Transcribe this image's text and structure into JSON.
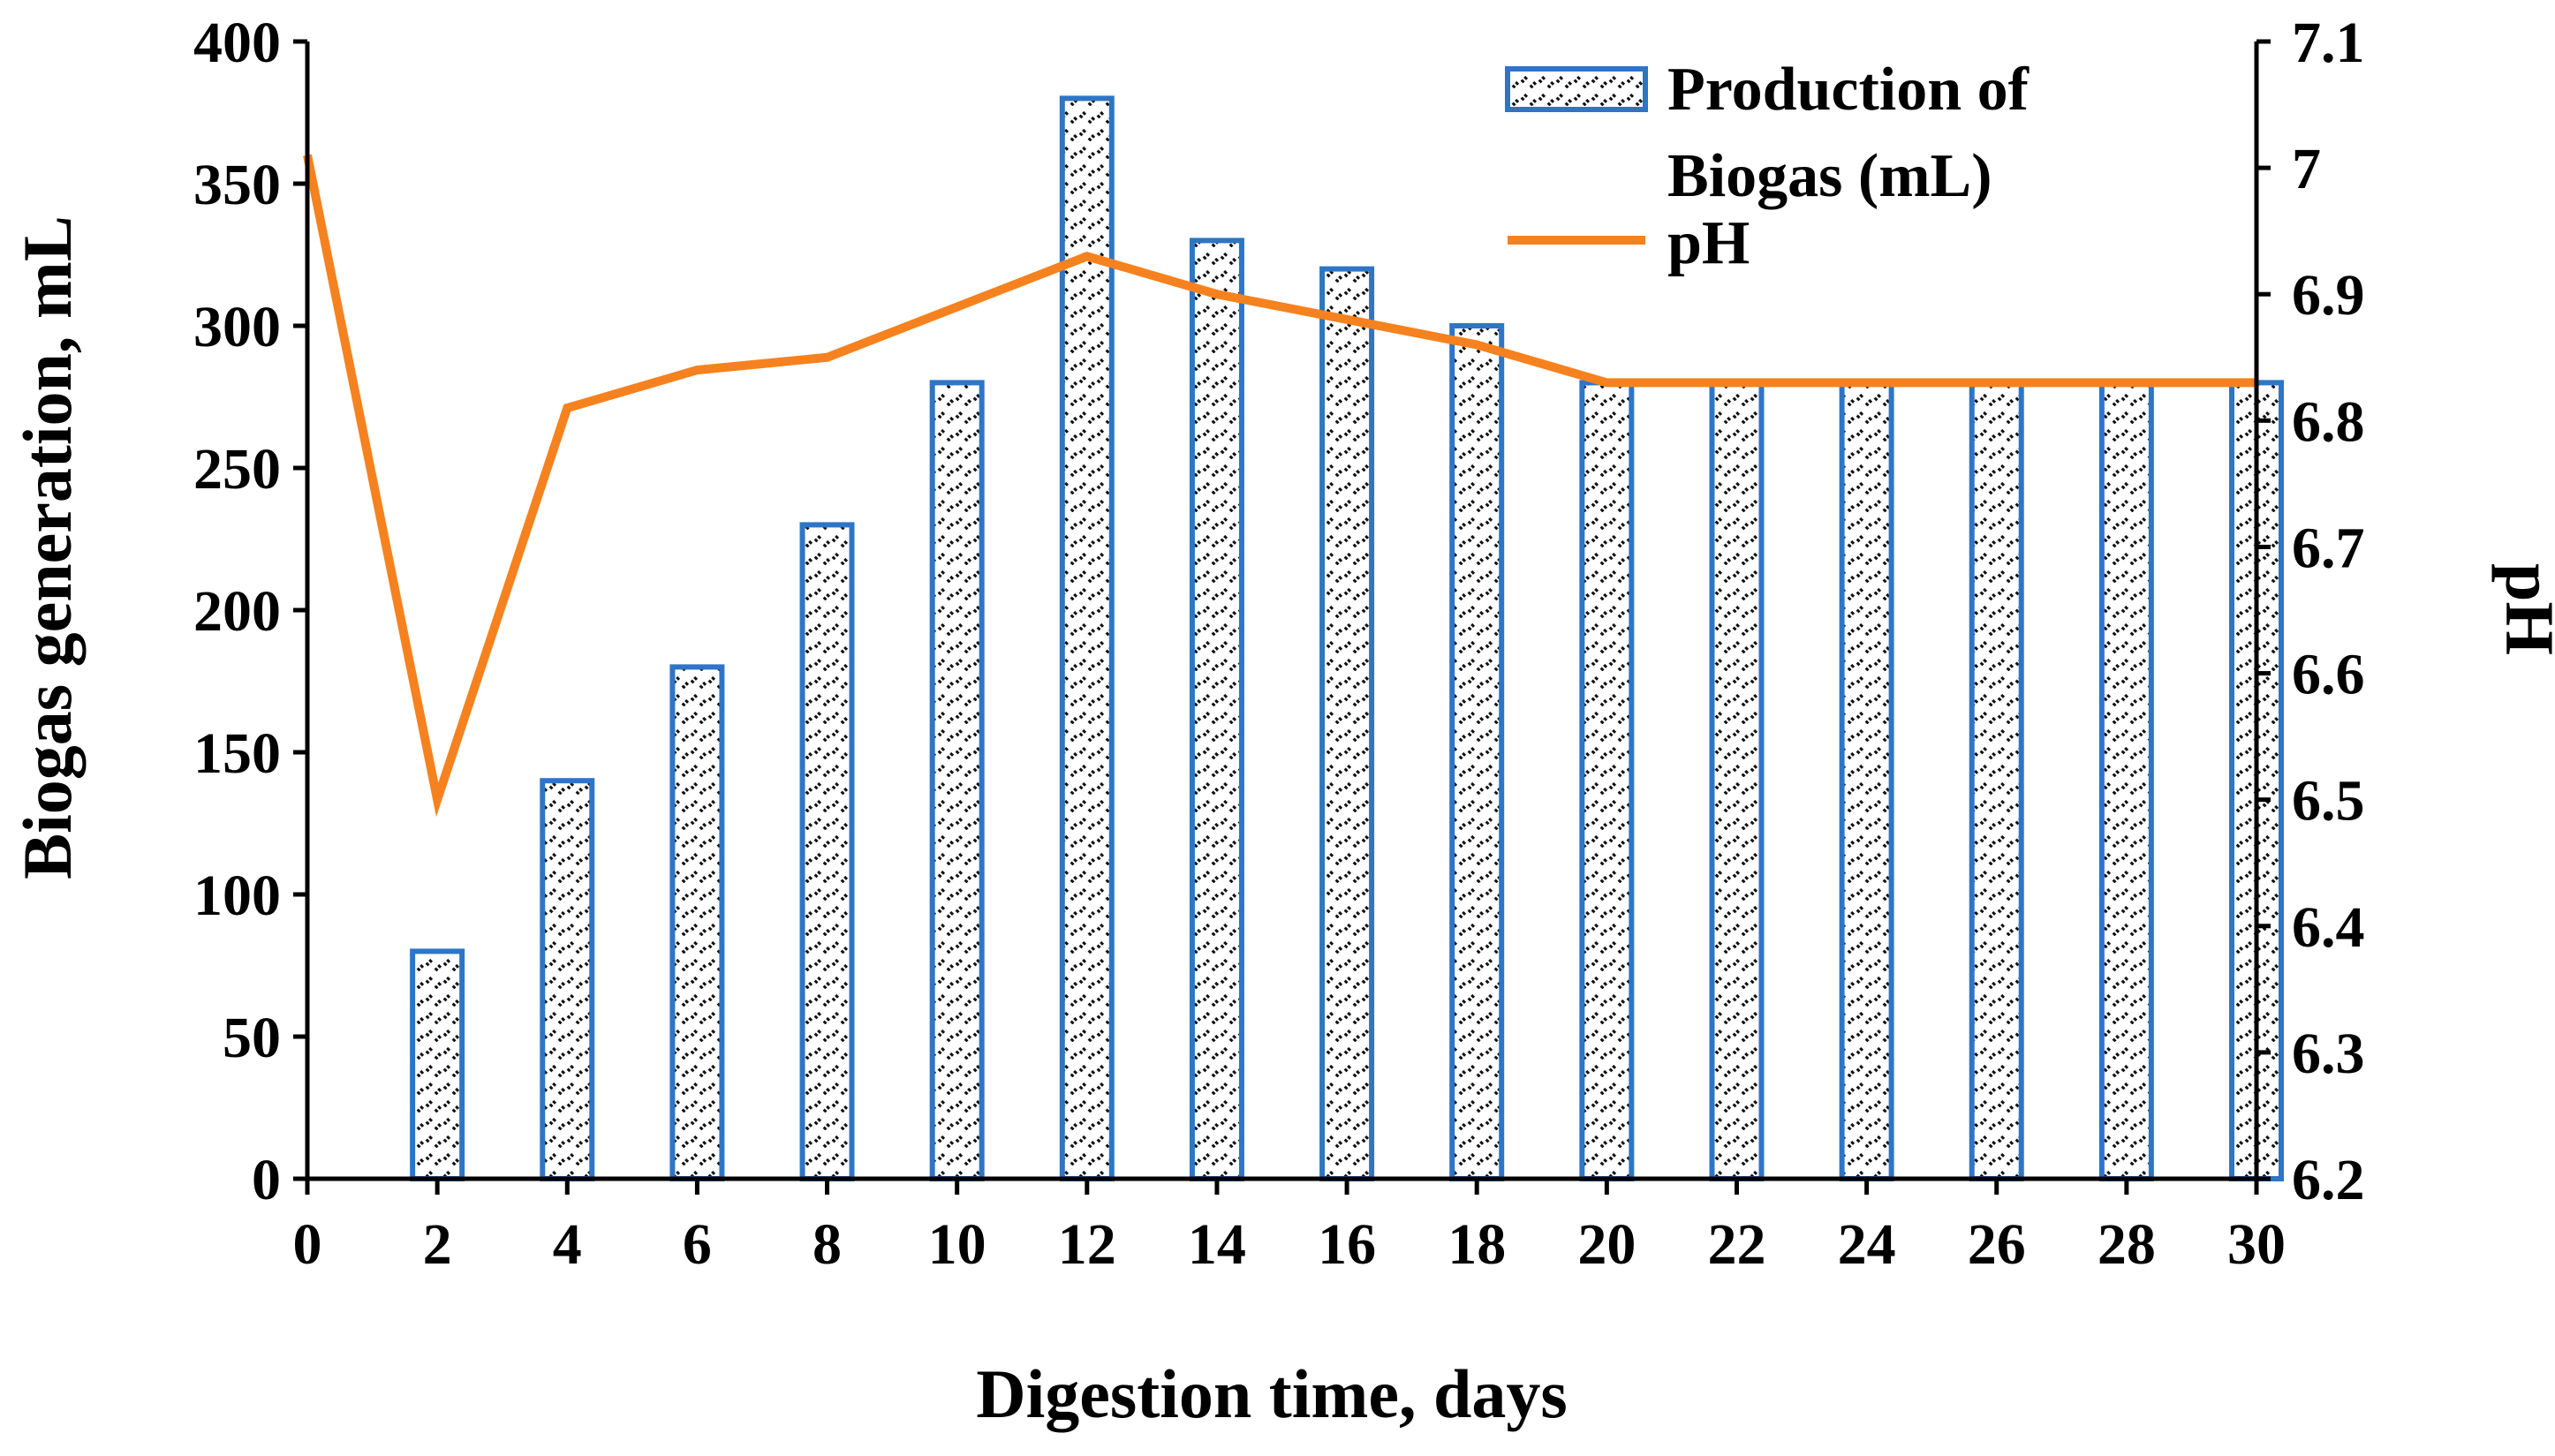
{
  "chart_data": {
    "type": "bar+line",
    "xlabel": "Digestion time, days",
    "ylabel": "Biogas generation, mL",
    "y2label": "pH",
    "x_ticks": [
      "0",
      "2",
      "4",
      "6",
      "8",
      "10",
      "12",
      "14",
      "16",
      "18",
      "20",
      "22",
      "24",
      "26",
      "28",
      "30"
    ],
    "x_range": [
      0,
      30
    ],
    "ylim": [
      0,
      400
    ],
    "y_ticks": [
      "0",
      "50",
      "100",
      "150",
      "200",
      "250",
      "300",
      "350",
      "400"
    ],
    "y2lim": [
      6.2,
      7.1
    ],
    "y2_ticks": [
      "6.2",
      "6.3",
      "6.4",
      "6.5",
      "6.6",
      "6.7",
      "6.8",
      "6.9",
      "7",
      "7.1"
    ],
    "legend_position": "top-right",
    "series": [
      {
        "name": "Production of Biogas (mL)",
        "legend_lines": [
          "Production of",
          "Biogas (mL)"
        ],
        "type": "bar",
        "axis": "left",
        "x": [
          2,
          4,
          6,
          8,
          10,
          12,
          14,
          16,
          18,
          20,
          22,
          24,
          26,
          28,
          30
        ],
        "values": [
          80,
          140,
          180,
          230,
          280,
          380,
          330,
          320,
          300,
          280,
          280,
          280,
          280,
          280,
          280
        ],
        "color": "#2E75C6"
      },
      {
        "name": "pH",
        "type": "line",
        "axis": "right",
        "x": [
          0,
          2,
          4,
          6,
          8,
          10,
          12,
          14,
          16,
          18,
          20,
          22,
          24,
          26,
          28,
          30
        ],
        "values": [
          7.01,
          6.5,
          6.81,
          6.84,
          6.85,
          6.89,
          6.93,
          6.9,
          6.88,
          6.86,
          6.83,
          6.83,
          6.83,
          6.83,
          6.83,
          6.83
        ],
        "color": "#F5821F"
      }
    ]
  }
}
